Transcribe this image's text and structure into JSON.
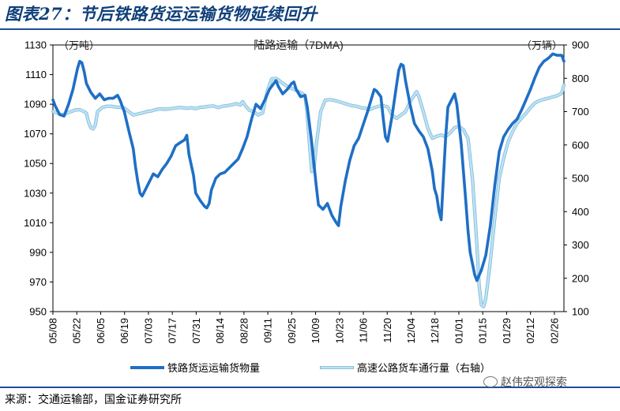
{
  "figure_title": "图表27：节后铁路货运运输货物延续回升",
  "source_text": "来源：交通运输部，国金证券研究所",
  "watermark_text": "赵伟宏观探索",
  "colors": {
    "rail": "#1f6fc5",
    "highway": "#bde3f3",
    "title": "#0f3f7a",
    "rule": "#1f4e96"
  },
  "chart_data": {
    "type": "line",
    "title": "陆路运输（7DMA)",
    "left_unit": "（万吨）",
    "right_unit": "（万辆）",
    "x_ticks": [
      "05/08",
      "05/22",
      "06/05",
      "06/19",
      "07/03",
      "07/17",
      "07/31",
      "08/14",
      "08/28",
      "09/11",
      "09/25",
      "10/09",
      "10/23",
      "11/06",
      "11/20",
      "12/04",
      "12/18",
      "01/01",
      "01/15",
      "01/29",
      "02/12",
      "02/26"
    ],
    "y_left": {
      "min": 950,
      "max": 1130,
      "ticks": [
        950,
        970,
        990,
        1010,
        1030,
        1050,
        1070,
        1090,
        1110,
        1130
      ]
    },
    "y_right": {
      "min": 100,
      "max": 900,
      "ticks": [
        100,
        200,
        300,
        400,
        500,
        600,
        700,
        800,
        900
      ]
    },
    "legend": [
      "铁路货运运输货物量",
      "高速公路货车通行量（右轴）"
    ],
    "series": [
      {
        "name": "铁路货运运输货物量",
        "axis": "left",
        "values": [
          [
            0,
            1093
          ],
          [
            1,
            1089
          ],
          [
            3,
            1083
          ],
          [
            5,
            1082
          ],
          [
            7,
            1090
          ],
          [
            9,
            1100
          ],
          [
            11,
            1114
          ],
          [
            12,
            1119
          ],
          [
            13,
            1118
          ],
          [
            14,
            1112
          ],
          [
            15,
            1104
          ],
          [
            17,
            1098
          ],
          [
            19,
            1094
          ],
          [
            21,
            1097
          ],
          [
            23,
            1093
          ],
          [
            25,
            1094
          ],
          [
            27,
            1094
          ],
          [
            29,
            1096
          ],
          [
            30,
            1093
          ],
          [
            32,
            1085
          ],
          [
            34,
            1072
          ],
          [
            36,
            1060
          ],
          [
            37,
            1048
          ],
          [
            38,
            1038
          ],
          [
            39,
            1030
          ],
          [
            40,
            1028
          ],
          [
            41,
            1031
          ],
          [
            43,
            1037
          ],
          [
            45,
            1043
          ],
          [
            47,
            1041
          ],
          [
            49,
            1046
          ],
          [
            51,
            1050
          ],
          [
            53,
            1055
          ],
          [
            55,
            1062
          ],
          [
            57,
            1064
          ],
          [
            59,
            1066
          ],
          [
            60,
            1069
          ],
          [
            61,
            1056
          ],
          [
            63,
            1042
          ],
          [
            64,
            1030
          ],
          [
            66,
            1025
          ],
          [
            68,
            1021
          ],
          [
            69,
            1020
          ],
          [
            70,
            1023
          ],
          [
            71,
            1032
          ],
          [
            73,
            1040
          ],
          [
            75,
            1043
          ],
          [
            77,
            1044
          ],
          [
            79,
            1047
          ],
          [
            81,
            1050
          ],
          [
            83,
            1053
          ],
          [
            85,
            1060
          ],
          [
            87,
            1068
          ],
          [
            89,
            1080
          ],
          [
            91,
            1090
          ],
          [
            93,
            1087
          ],
          [
            95,
            1093
          ],
          [
            97,
            1100
          ],
          [
            99,
            1104
          ],
          [
            100,
            1106
          ],
          [
            101,
            1102
          ],
          [
            103,
            1097
          ],
          [
            105,
            1100
          ],
          [
            107,
            1104
          ],
          [
            108,
            1105
          ],
          [
            109,
            1100
          ],
          [
            111,
            1095
          ],
          [
            113,
            1096
          ],
          [
            114,
            1088
          ],
          [
            116,
            1064
          ],
          [
            118,
            1035
          ],
          [
            119,
            1022
          ],
          [
            121,
            1019
          ],
          [
            123,
            1023
          ],
          [
            125,
            1015
          ],
          [
            127,
            1010
          ],
          [
            128,
            1008
          ],
          [
            129,
            1021
          ],
          [
            131,
            1038
          ],
          [
            133,
            1052
          ],
          [
            135,
            1062
          ],
          [
            137,
            1067
          ],
          [
            139,
            1076
          ],
          [
            141,
            1085
          ],
          [
            143,
            1095
          ],
          [
            144,
            1100
          ],
          [
            145,
            1099
          ],
          [
            147,
            1095
          ],
          [
            148,
            1081
          ],
          [
            149,
            1068
          ],
          [
            150,
            1065
          ],
          [
            152,
            1082
          ],
          [
            154,
            1103
          ],
          [
            155,
            1113
          ],
          [
            156,
            1117
          ],
          [
            157,
            1116
          ],
          [
            158,
            1106
          ],
          [
            160,
            1090
          ],
          [
            162,
            1077
          ],
          [
            164,
            1072
          ],
          [
            166,
            1068
          ],
          [
            168,
            1060
          ],
          [
            170,
            1045
          ],
          [
            171,
            1033
          ],
          [
            172,
            1028
          ],
          [
            173,
            1018
          ],
          [
            174,
            1012
          ],
          [
            175,
            1040
          ],
          [
            176,
            1068
          ],
          [
            177,
            1088
          ],
          [
            178,
            1091
          ],
          [
            179,
            1094
          ],
          [
            180,
            1097
          ],
          [
            181,
            1090
          ],
          [
            183,
            1063
          ],
          [
            185,
            1025
          ],
          [
            186,
            1005
          ],
          [
            187,
            990
          ],
          [
            189,
            975
          ],
          [
            190,
            971
          ],
          [
            192,
            978
          ],
          [
            194,
            988
          ],
          [
            196,
            1008
          ],
          [
            198,
            1035
          ],
          [
            200,
            1058
          ],
          [
            202,
            1068
          ],
          [
            204,
            1073
          ],
          [
            206,
            1077
          ],
          [
            208,
            1080
          ],
          [
            210,
            1086
          ],
          [
            212,
            1093
          ],
          [
            214,
            1100
          ],
          [
            216,
            1108
          ],
          [
            218,
            1115
          ],
          [
            220,
            1119
          ],
          [
            222,
            1121
          ],
          [
            224,
            1124
          ],
          [
            226,
            1123
          ],
          [
            228,
            1123
          ],
          [
            229,
            1119
          ]
        ]
      },
      {
        "name": "高速公路货车通行量（右轴）",
        "axis": "right",
        "values": [
          [
            0,
            700
          ],
          [
            2,
            696
          ],
          [
            4,
            690
          ],
          [
            6,
            695
          ],
          [
            8,
            700
          ],
          [
            10,
            705
          ],
          [
            12,
            706
          ],
          [
            14,
            700
          ],
          [
            15,
            695
          ],
          [
            16,
            668
          ],
          [
            17,
            652
          ],
          [
            18,
            648
          ],
          [
            19,
            660
          ],
          [
            20,
            700
          ],
          [
            22,
            712
          ],
          [
            24,
            716
          ],
          [
            26,
            716
          ],
          [
            28,
            714
          ],
          [
            30,
            713
          ],
          [
            32,
            711
          ],
          [
            34,
            700
          ],
          [
            36,
            690
          ],
          [
            38,
            693
          ],
          [
            40,
            696
          ],
          [
            42,
            700
          ],
          [
            44,
            702
          ],
          [
            46,
            706
          ],
          [
            48,
            708
          ],
          [
            50,
            707
          ],
          [
            52,
            708
          ],
          [
            54,
            710
          ],
          [
            56,
            712
          ],
          [
            58,
            712
          ],
          [
            60,
            710
          ],
          [
            62,
            712
          ],
          [
            64,
            709
          ],
          [
            66,
            713
          ],
          [
            68,
            714
          ],
          [
            70,
            716
          ],
          [
            72,
            717
          ],
          [
            74,
            712
          ],
          [
            76,
            716
          ],
          [
            78,
            718
          ],
          [
            80,
            720
          ],
          [
            82,
            724
          ],
          [
            84,
            720
          ],
          [
            85,
            730
          ],
          [
            86,
            720
          ],
          [
            88,
            704
          ],
          [
            90,
            700
          ],
          [
            92,
            690
          ],
          [
            94,
            696
          ],
          [
            96,
            760
          ],
          [
            98,
            798
          ],
          [
            100,
            800
          ],
          [
            102,
            790
          ],
          [
            104,
            780
          ],
          [
            106,
            772
          ],
          [
            108,
            767
          ],
          [
            110,
            760
          ],
          [
            112,
            754
          ],
          [
            113,
            746
          ],
          [
            114,
            690
          ],
          [
            115,
            600
          ],
          [
            116,
            520
          ],
          [
            117,
            530
          ],
          [
            118,
            600
          ],
          [
            120,
            700
          ],
          [
            122,
            734
          ],
          [
            124,
            736
          ],
          [
            126,
            734
          ],
          [
            128,
            730
          ],
          [
            130,
            726
          ],
          [
            132,
            722
          ],
          [
            134,
            718
          ],
          [
            136,
            716
          ],
          [
            138,
            712
          ],
          [
            140,
            710
          ],
          [
            142,
            706
          ],
          [
            144,
            712
          ],
          [
            146,
            716
          ],
          [
            148,
            718
          ],
          [
            150,
            714
          ],
          [
            152,
            690
          ],
          [
            154,
            680
          ],
          [
            156,
            690
          ],
          [
            158,
            700
          ],
          [
            160,
            730
          ],
          [
            162,
            750
          ],
          [
            163,
            760
          ],
          [
            164,
            745
          ],
          [
            166,
            700
          ],
          [
            168,
            650
          ],
          [
            170,
            620
          ],
          [
            172,
            626
          ],
          [
            174,
            630
          ],
          [
            176,
            625
          ],
          [
            178,
            636
          ],
          [
            180,
            652
          ],
          [
            182,
            656
          ],
          [
            184,
            645
          ],
          [
            186,
            620
          ],
          [
            188,
            500
          ],
          [
            190,
            300
          ],
          [
            191,
            180
          ],
          [
            192,
            120
          ],
          [
            193,
            115
          ],
          [
            194,
            140
          ],
          [
            196,
            250
          ],
          [
            198,
            380
          ],
          [
            200,
            500
          ],
          [
            202,
            560
          ],
          [
            204,
            610
          ],
          [
            206,
            640
          ],
          [
            208,
            665
          ],
          [
            210,
            680
          ],
          [
            212,
            695
          ],
          [
            214,
            712
          ],
          [
            216,
            726
          ],
          [
            218,
            733
          ],
          [
            220,
            737
          ],
          [
            222,
            740
          ],
          [
            224,
            744
          ],
          [
            226,
            748
          ],
          [
            228,
            755
          ],
          [
            229,
            780
          ]
        ]
      }
    ]
  }
}
